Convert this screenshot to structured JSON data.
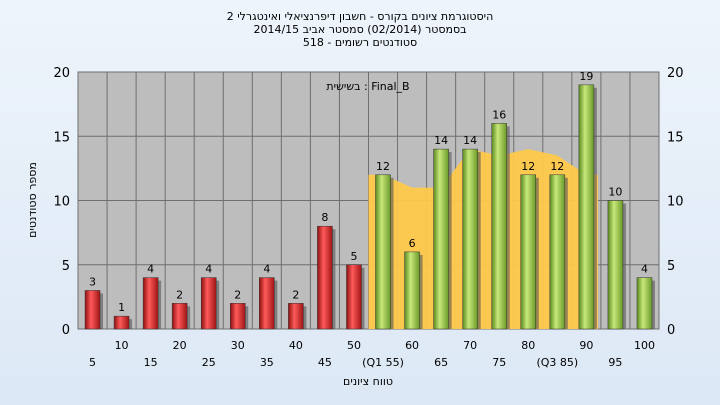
{
  "titles": {
    "line1": "היסטוגרמת ציונים בקורס - חשבון דיפרנציאלי ואינטגרלי 2",
    "line2": "בסמסטר  (02/2014)  סמסטר אביב 2014/15",
    "line3": "518 - סטודנטים רשומים"
  },
  "chart_data": {
    "type": "bar",
    "title": "היסטוגרמת ציונים בקורס - חשבון דיפרנציאלי ואינטגרלי 2",
    "xlabel": "טווח ציונים",
    "ylabel": "מספר סטודנטים",
    "annotation": "בשישית : Final_B",
    "ylim": [
      0,
      20
    ],
    "yticks": [
      0,
      5,
      10,
      15,
      20
    ],
    "grid": true,
    "categories": [
      "5",
      "10",
      "15",
      "20",
      "25",
      "30",
      "35",
      "40",
      "45",
      "50",
      "(Q1 55)",
      "60",
      "65",
      "70",
      "75",
      "80",
      "(Q3 85)",
      "90",
      "95",
      "100"
    ],
    "values": [
      3,
      1,
      4,
      2,
      4,
      2,
      4,
      2,
      8,
      5,
      12,
      6,
      14,
      14,
      16,
      12,
      12,
      19,
      10,
      4
    ],
    "bar_colors": [
      "red",
      "red",
      "red",
      "red",
      "red",
      "red",
      "red",
      "red",
      "red",
      "red",
      "green",
      "green",
      "green",
      "green",
      "green",
      "green",
      "green",
      "green",
      "green",
      "green"
    ],
    "iqr_band": [
      12,
      11,
      11,
      14,
      13.5,
      14,
      13.5,
      12
    ],
    "colors": {
      "red": "#d42020",
      "green": "#8cc043",
      "band": "#ffc94a",
      "plot_bg": "#bdbdbd"
    }
  }
}
